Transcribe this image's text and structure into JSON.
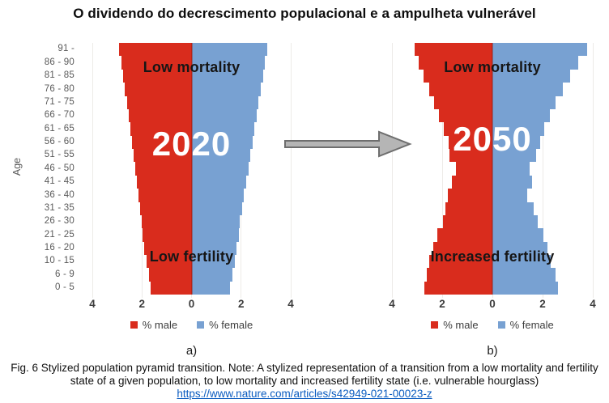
{
  "title": "O dividendo do decrescimento populacional e a ampulheta vulnerável",
  "y_axis": {
    "label": "Age"
  },
  "age_groups": [
    "91 -",
    "86 - 90",
    "81 - 85",
    "76 - 80",
    "71 - 75",
    "66 - 70",
    "61 - 65",
    "56 - 60",
    "51 - 55",
    "46 - 50",
    "41 - 45",
    "36 - 40",
    "31 - 35",
    "26 - 30",
    "21 - 25",
    "16 - 20",
    "10 - 15",
    "6 - 9",
    "0 - 5"
  ],
  "colors": {
    "male": "#d92c1d",
    "female": "#78a1d2",
    "gridline": "#edebe8",
    "arrow_fill": "#b5b5b5",
    "arrow_stroke": "#6e6e6e",
    "link": "#0b5cc0"
  },
  "legend": {
    "male_label": "% male",
    "female_label": "% female"
  },
  "chart_data": [
    {
      "type": "bar",
      "subtype": "population_pyramid",
      "panel_label": "a)",
      "year": "2020",
      "top_annotation": "Low mortality",
      "bottom_annotation": "Low fertility",
      "xlabel_ticks": [
        "4",
        "2",
        "0",
        "2",
        "4"
      ],
      "xlim": [
        -4,
        4
      ],
      "ylabel": "Age",
      "categories": [
        "91 -",
        "86 - 90",
        "81 - 85",
        "76 - 80",
        "71 - 75",
        "66 - 70",
        "61 - 65",
        "56 - 60",
        "51 - 55",
        "46 - 50",
        "41 - 45",
        "36 - 40",
        "31 - 35",
        "26 - 30",
        "21 - 25",
        "16 - 20",
        "10 - 15",
        "6 - 9",
        "0 - 5"
      ],
      "series": [
        {
          "name": "% male",
          "side": "left",
          "color": "#d92c1d",
          "values": [
            2.92,
            2.84,
            2.76,
            2.68,
            2.61,
            2.53,
            2.46,
            2.39,
            2.32,
            2.26,
            2.19,
            2.13,
            2.07,
            2.02,
            1.97,
            1.9,
            1.82,
            1.73,
            1.65
          ]
        },
        {
          "name": "% female",
          "side": "right",
          "color": "#78a1d2",
          "values": [
            3.05,
            2.97,
            2.88,
            2.8,
            2.71,
            2.63,
            2.54,
            2.46,
            2.37,
            2.29,
            2.2,
            2.12,
            2.03,
            1.95,
            1.9,
            1.8,
            1.74,
            1.64,
            1.55
          ]
        }
      ]
    },
    {
      "type": "bar",
      "subtype": "population_pyramid",
      "panel_label": "b)",
      "year": "2050",
      "top_annotation": "Low mortality",
      "bottom_annotation": "Increased fertility",
      "xlabel_ticks": [
        "4",
        "2",
        "0",
        "2",
        "4"
      ],
      "xlim": [
        -4,
        4
      ],
      "ylabel": "Age",
      "categories": [
        "91 -",
        "86 - 90",
        "81 - 85",
        "76 - 80",
        "71 - 75",
        "66 - 70",
        "61 - 65",
        "56 - 60",
        "51 - 55",
        "46 - 50",
        "41 - 45",
        "36 - 40",
        "31 - 35",
        "26 - 30",
        "21 - 25",
        "16 - 20",
        "10 - 15",
        "6 - 9",
        "0 - 5"
      ],
      "series": [
        {
          "name": "% male",
          "side": "left",
          "color": "#d92c1d",
          "values": [
            3.1,
            2.95,
            2.75,
            2.52,
            2.33,
            2.13,
            1.93,
            1.74,
            1.7,
            1.44,
            1.6,
            1.77,
            1.87,
            1.97,
            2.2,
            2.36,
            2.52,
            2.62,
            2.72
          ]
        },
        {
          "name": "% female",
          "side": "right",
          "color": "#78a1d2",
          "values": [
            3.77,
            3.42,
            3.1,
            2.8,
            2.52,
            2.3,
            2.06,
            1.9,
            1.74,
            1.47,
            1.57,
            1.4,
            1.64,
            1.8,
            2.03,
            2.2,
            2.33,
            2.5,
            2.6
          ]
        }
      ]
    }
  ],
  "caption": {
    "text": "Fig. 6 Stylized population pyramid transition. Note: A stylized representation of a transition from a low mortality and fertility state of a given population, to low mortality and increased fertility state (i.e. vulnerable hourglass)"
  },
  "link": {
    "text": "https://www.nature.com/articles/s42949-021-00023-z",
    "href": "https://www.nature.com/articles/s42949-021-00023-z"
  }
}
